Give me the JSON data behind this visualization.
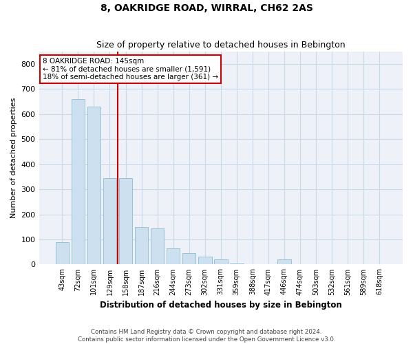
{
  "title": "8, OAKRIDGE ROAD, WIRRAL, CH62 2AS",
  "subtitle": "Size of property relative to detached houses in Bebington",
  "xlabel": "Distribution of detached houses by size in Bebington",
  "ylabel": "Number of detached properties",
  "footer_line1": "Contains HM Land Registry data © Crown copyright and database right 2024.",
  "footer_line2": "Contains public sector information licensed under the Open Government Licence v3.0.",
  "categories": [
    "43sqm",
    "72sqm",
    "101sqm",
    "129sqm",
    "158sqm",
    "187sqm",
    "216sqm",
    "244sqm",
    "273sqm",
    "302sqm",
    "331sqm",
    "359sqm",
    "388sqm",
    "417sqm",
    "446sqm",
    "474sqm",
    "503sqm",
    "532sqm",
    "561sqm",
    "589sqm",
    "618sqm"
  ],
  "values": [
    90,
    660,
    630,
    345,
    345,
    150,
    145,
    65,
    45,
    30,
    20,
    5,
    0,
    0,
    20,
    0,
    0,
    0,
    0,
    0,
    0
  ],
  "bar_color": "#cce0f0",
  "bar_edge_color": "#8abcd1",
  "grid_color": "#c8d8e8",
  "background_color": "#eef2f8",
  "vline_x": 3.5,
  "vline_color": "#cc0000",
  "annotation_text": "8 OAKRIDGE ROAD: 145sqm\n← 81% of detached houses are smaller (1,591)\n18% of semi-detached houses are larger (361) →",
  "annotation_box_color": "#ffffff",
  "annotation_box_edge": "#cc0000",
  "ylim": [
    0,
    850
  ],
  "yticks": [
    0,
    100,
    200,
    300,
    400,
    500,
    600,
    700,
    800
  ],
  "figwidth": 6.0,
  "figheight": 5.0,
  "dpi": 100
}
